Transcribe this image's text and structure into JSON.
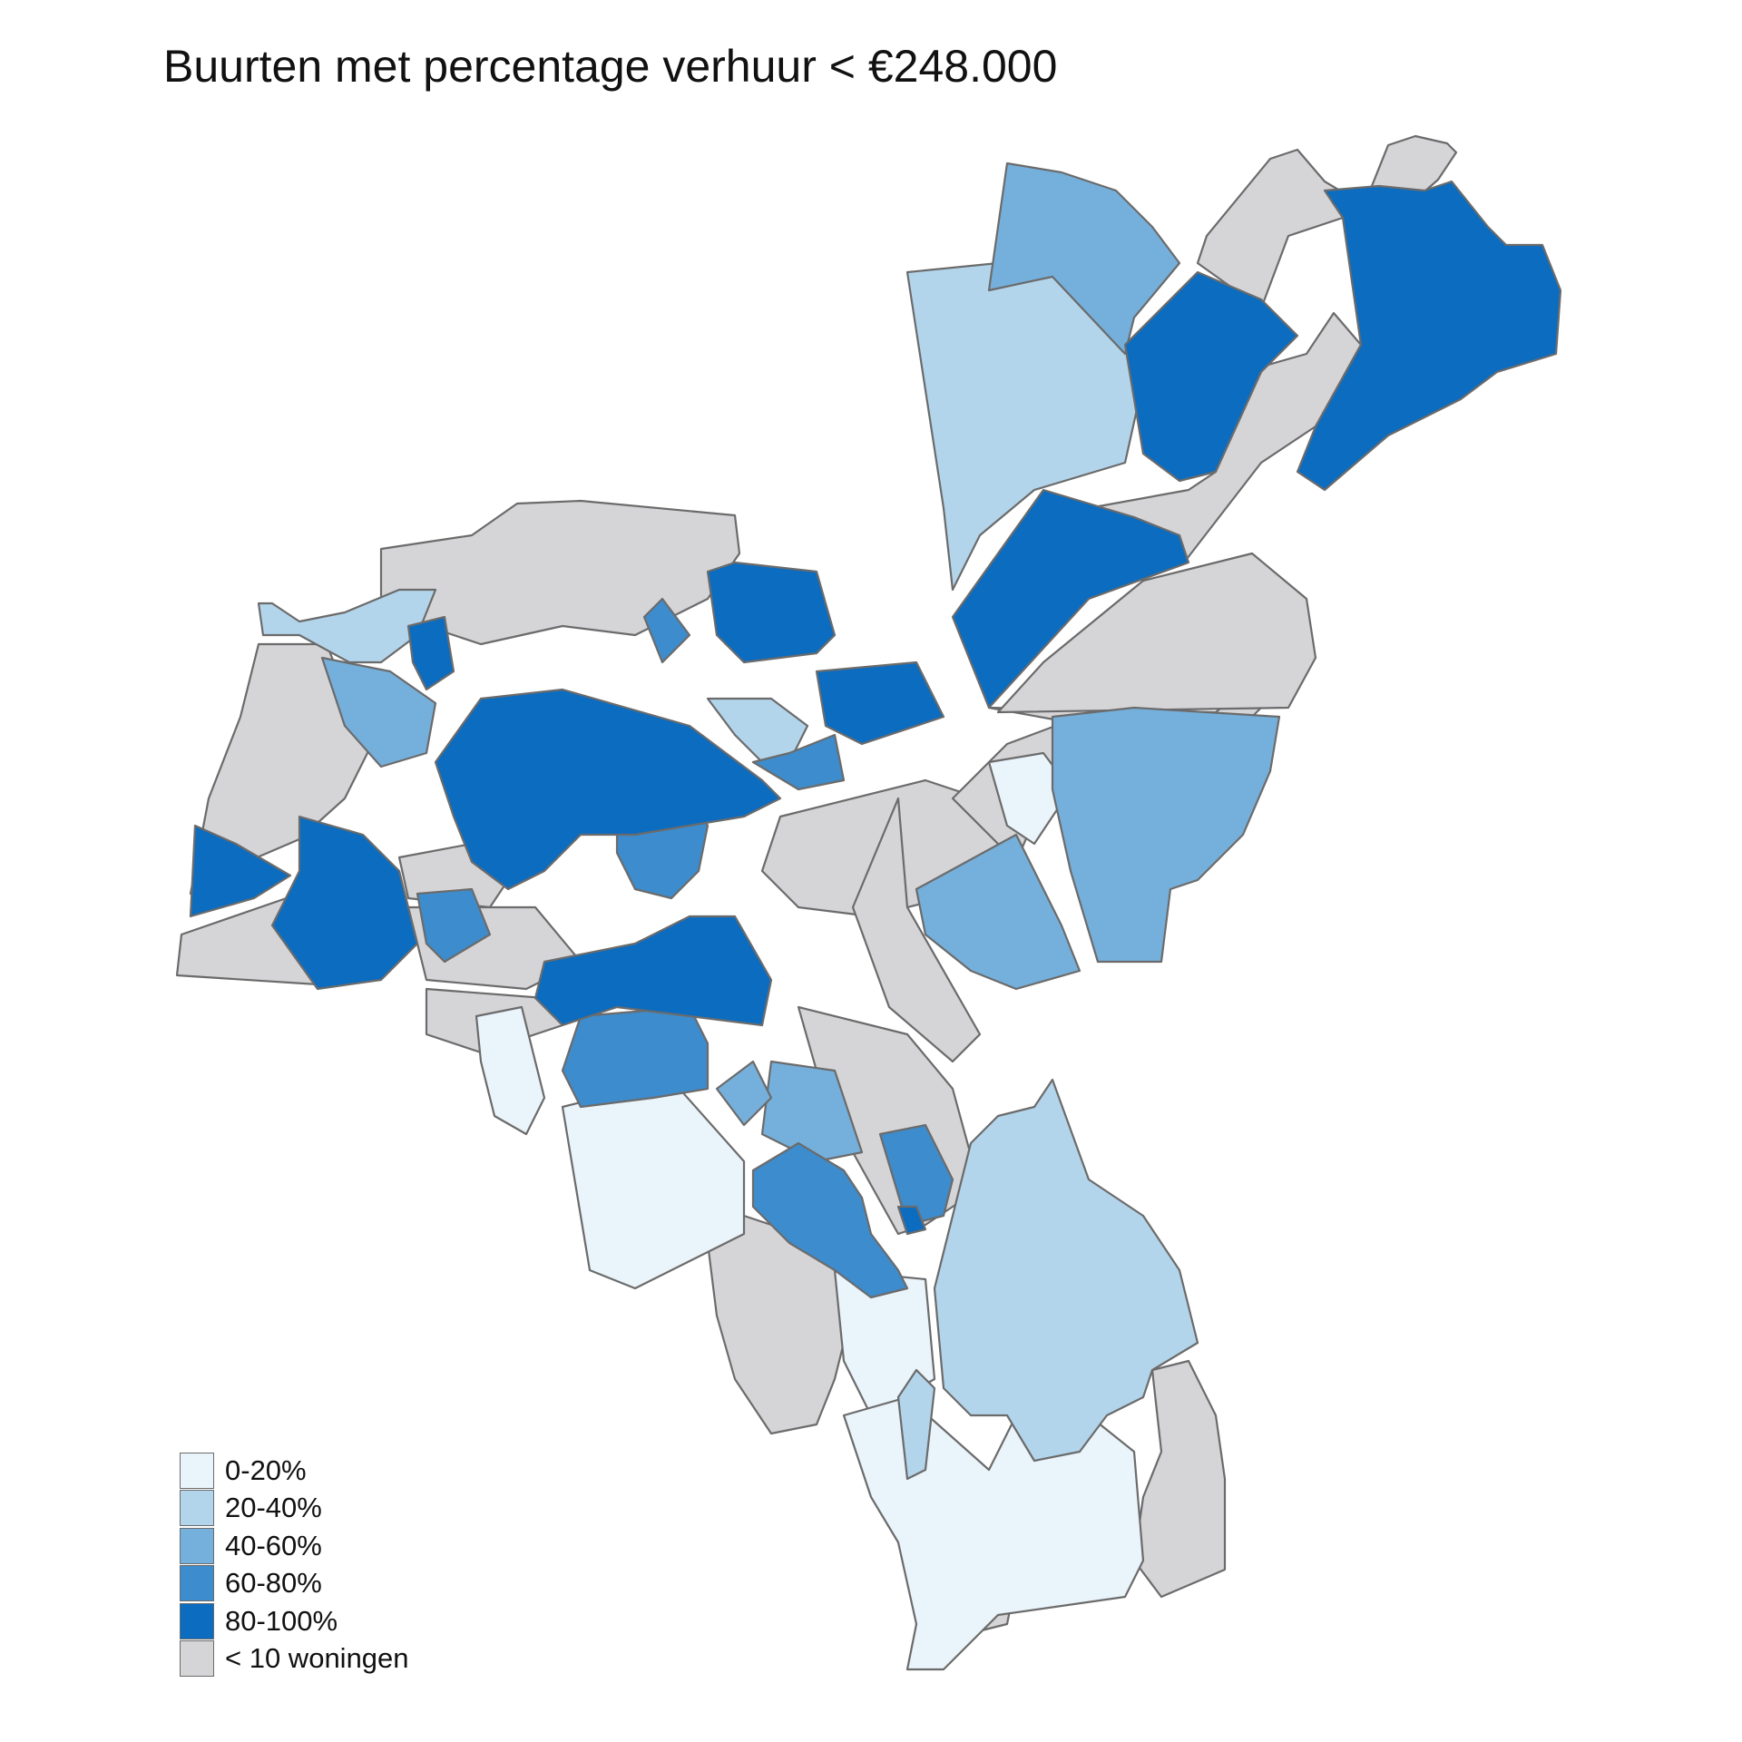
{
  "map": {
    "title": "Buurten met percentage verhuur < €248.000",
    "legend": [
      {
        "key": "c0",
        "label": "0-20%",
        "color": "#eaf4fb"
      },
      {
        "key": "c1",
        "label": "20-40%",
        "color": "#b3d5ec"
      },
      {
        "key": "c2",
        "label": "40-60%",
        "color": "#75b0dc"
      },
      {
        "key": "c3",
        "label": "60-80%",
        "color": "#3d8ccd"
      },
      {
        "key": "c4",
        "label": "80-100%",
        "color": "#0b6cc0"
      },
      {
        "key": "none",
        "label": "< 10 woningen",
        "color": "#d5d4d7"
      }
    ],
    "border_color": "#6b6b6b"
  }
}
